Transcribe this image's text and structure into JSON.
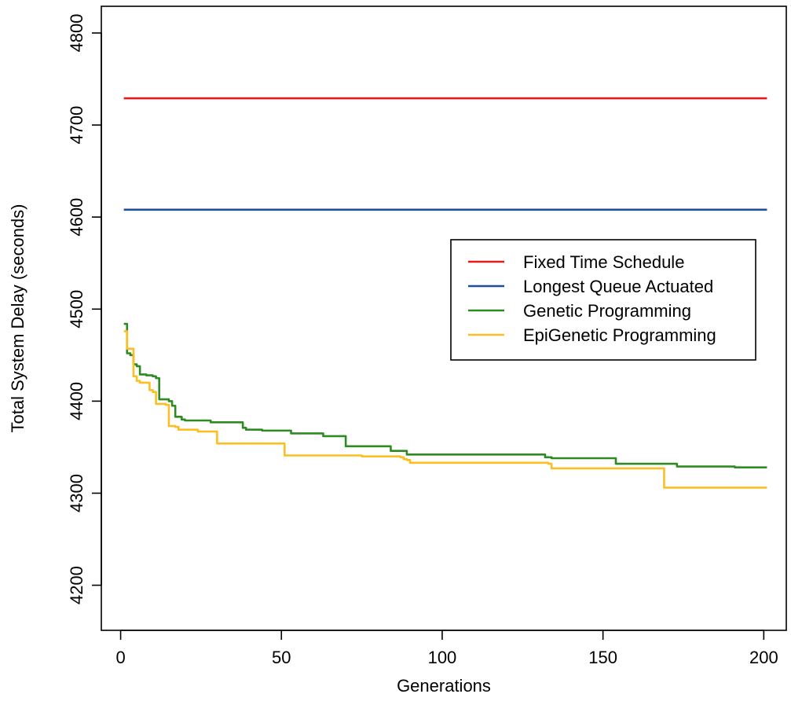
{
  "chart_data": {
    "type": "line",
    "title": "",
    "xlabel": "Generations",
    "ylabel": "Total System Delay (seconds)",
    "xlim": [
      -6,
      207
    ],
    "ylim": [
      4151,
      4829
    ],
    "xticks": [
      0,
      50,
      100,
      150,
      200
    ],
    "yticks": [
      4200,
      4300,
      4400,
      4500,
      4600,
      4700,
      4800
    ],
    "legend_position": "center-right",
    "grid": false,
    "series": [
      {
        "name": "Fixed Time Schedule",
        "color": "#e41a1c",
        "step": false,
        "points": [
          [
            1,
            4729
          ],
          [
            201,
            4729
          ]
        ]
      },
      {
        "name": "Longest Queue Actuated",
        "color": "#1f4e9c",
        "step": false,
        "points": [
          [
            1,
            4608
          ],
          [
            201,
            4608
          ]
        ]
      },
      {
        "name": "Genetic Programming",
        "color": "#2e8b22",
        "step": true,
        "points": [
          [
            1,
            4484
          ],
          [
            2,
            4452
          ],
          [
            3,
            4450
          ],
          [
            4,
            4440
          ],
          [
            5,
            4438
          ],
          [
            6,
            4429
          ],
          [
            8,
            4428
          ],
          [
            10,
            4427
          ],
          [
            11,
            4425
          ],
          [
            12,
            4402
          ],
          [
            15,
            4400
          ],
          [
            16,
            4395
          ],
          [
            17,
            4383
          ],
          [
            19,
            4380
          ],
          [
            20,
            4379
          ],
          [
            28,
            4377
          ],
          [
            38,
            4371
          ],
          [
            39,
            4369
          ],
          [
            44,
            4368
          ],
          [
            53,
            4365
          ],
          [
            63,
            4362
          ],
          [
            70,
            4351
          ],
          [
            84,
            4346
          ],
          [
            89,
            4342
          ],
          [
            132,
            4339
          ],
          [
            134,
            4338
          ],
          [
            154,
            4332
          ],
          [
            173,
            4329
          ],
          [
            191,
            4328
          ],
          [
            201,
            4328
          ]
        ]
      },
      {
        "name": "EpiGenetic Programming",
        "color": "#fbbf24",
        "step": true,
        "points": [
          [
            1,
            4476
          ],
          [
            2,
            4457
          ],
          [
            3,
            4457
          ],
          [
            4,
            4427
          ],
          [
            5,
            4422
          ],
          [
            6,
            4420
          ],
          [
            8,
            4420
          ],
          [
            9,
            4412
          ],
          [
            10,
            4410
          ],
          [
            11,
            4397
          ],
          [
            14,
            4396
          ],
          [
            15,
            4373
          ],
          [
            17,
            4372
          ],
          [
            18,
            4369
          ],
          [
            24,
            4367
          ],
          [
            30,
            4354
          ],
          [
            51,
            4341
          ],
          [
            75,
            4340
          ],
          [
            87,
            4339
          ],
          [
            88,
            4337
          ],
          [
            89,
            4336
          ],
          [
            90,
            4333
          ],
          [
            133,
            4332
          ],
          [
            134,
            4327
          ],
          [
            169,
            4306
          ],
          [
            201,
            4306
          ]
        ]
      }
    ]
  }
}
